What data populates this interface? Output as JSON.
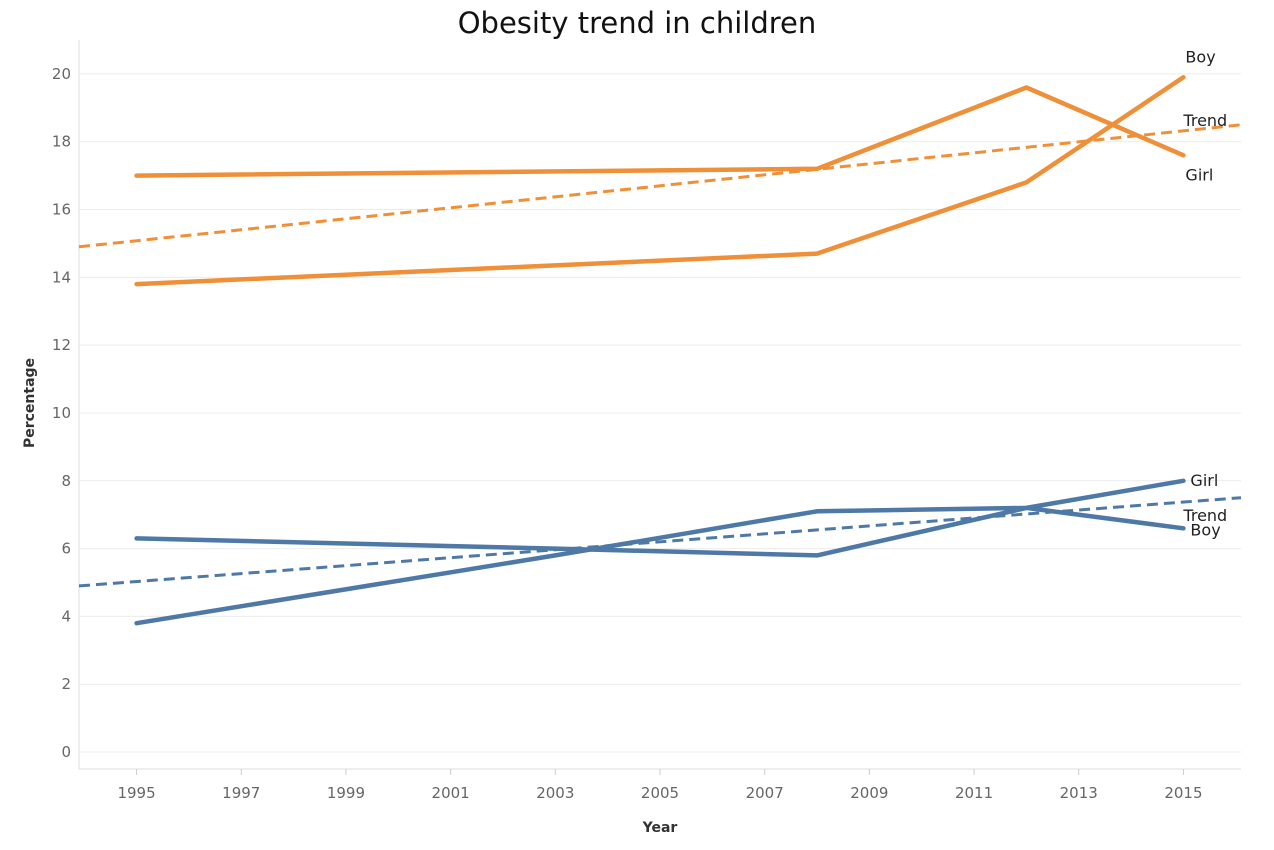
{
  "chart_data": {
    "type": "line",
    "title": "Obesity trend in children",
    "xlabel": "Year",
    "ylabel": "Percentage",
    "xlim": [
      1993.9,
      2016.1
    ],
    "ylim": [
      -0.5,
      21
    ],
    "x_ticks": [
      "1995",
      "1997",
      "1999",
      "2001",
      "2003",
      "2005",
      "2007",
      "2009",
      "2011",
      "2013",
      "2015"
    ],
    "y_ticks": [
      "0",
      "2",
      "4",
      "6",
      "8",
      "10",
      "12",
      "14",
      "16",
      "18",
      "20"
    ],
    "grid": true,
    "legend": "none",
    "series": [
      {
        "name": "Boy",
        "color": "#ef8f37",
        "dash": false,
        "x": [
          1995,
          2008,
          2012,
          2015
        ],
        "y": [
          13.8,
          14.7,
          16.8,
          19.9
        ]
      },
      {
        "name": "Girl",
        "color": "#ef8f37",
        "dash": false,
        "x": [
          1995,
          2008,
          2012,
          2015
        ],
        "y": [
          17.0,
          17.2,
          19.6,
          17.6
        ]
      },
      {
        "name": "Trend",
        "color": "#ef8f37",
        "dash": true,
        "x": [
          1993.9,
          2016.1
        ],
        "y": [
          14.9,
          18.5
        ]
      },
      {
        "name": "Girl",
        "color": "#4e79a7",
        "dash": false,
        "x": [
          1995,
          2003,
          2008,
          2012,
          2015
        ],
        "y": [
          3.8,
          5.8,
          7.1,
          7.2,
          8.0
        ]
      },
      {
        "name": "Boy",
        "color": "#4e79a7",
        "dash": false,
        "x": [
          1995,
          2003,
          2008,
          2012,
          2015
        ],
        "y": [
          6.3,
          6.0,
          5.8,
          7.2,
          6.6
        ]
      },
      {
        "name": "Trend",
        "color": "#4e79a7",
        "dash": true,
        "x": [
          1993.9,
          2016.1
        ],
        "y": [
          4.9,
          7.5
        ]
      }
    ],
    "series_labels": [
      {
        "text": "Boy",
        "series": 0
      },
      {
        "text": "Trend",
        "series": 2
      },
      {
        "text": "Girl",
        "series": 1
      },
      {
        "text": "Girl",
        "series": 3
      },
      {
        "text": "Trend",
        "series": 5
      },
      {
        "text": "Boy",
        "series": 4
      }
    ]
  }
}
